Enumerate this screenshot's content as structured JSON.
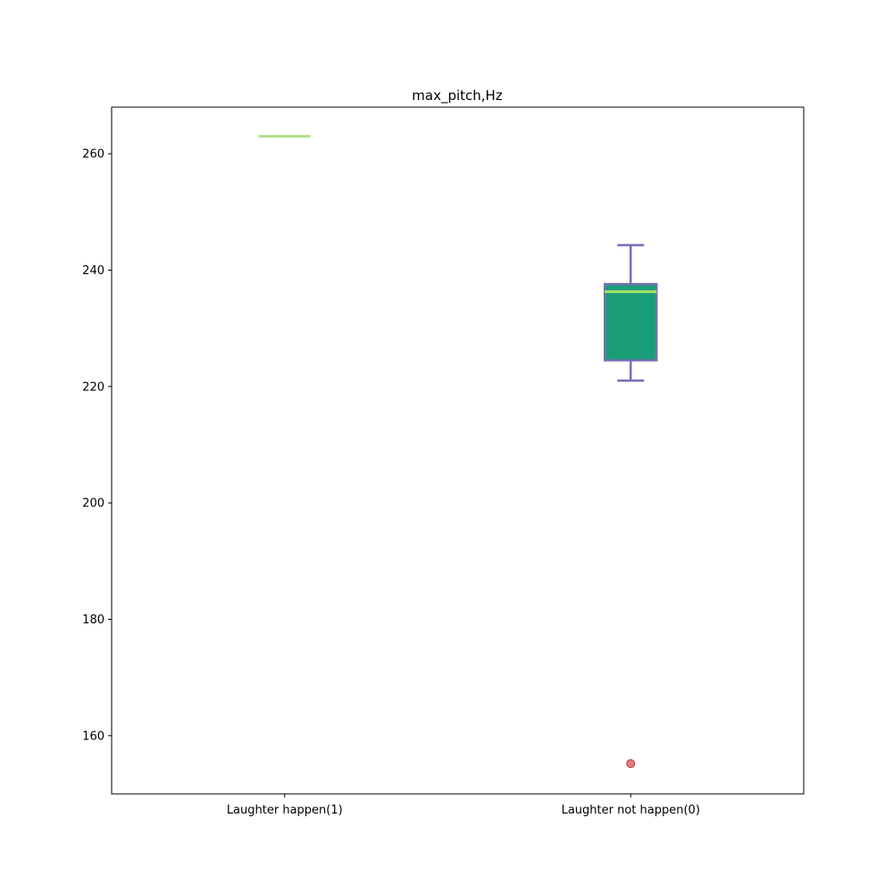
{
  "chart_data": {
    "type": "box",
    "title": "max_pitch,Hz",
    "xlabel": "",
    "ylabel": "",
    "ylim": [
      150,
      268
    ],
    "yticks": [
      160,
      180,
      200,
      220,
      240,
      260
    ],
    "categories": [
      "Laughter happen(1)",
      "Laughter not happen(0)"
    ],
    "boxes": [
      {
        "category": "Laughter happen(1)",
        "whisker_low": 263,
        "q1": 263,
        "median": 263,
        "q3": 263,
        "whisker_high": 263,
        "outliers": []
      },
      {
        "category": "Laughter not happen(0)",
        "whisker_low": 221,
        "q1": 224.5,
        "median": 236.3,
        "q3": 237.6,
        "whisker_high": 244.3,
        "outliers": [
          155.2
        ]
      }
    ],
    "colors": {
      "box_fill": "#1a9e77",
      "box_edge": "#7570b3",
      "median": "#b2df8a",
      "median_bright": "#a6e36a",
      "outlier_fill": "#e7797a",
      "outlier_edge": "#b03a3a"
    }
  }
}
